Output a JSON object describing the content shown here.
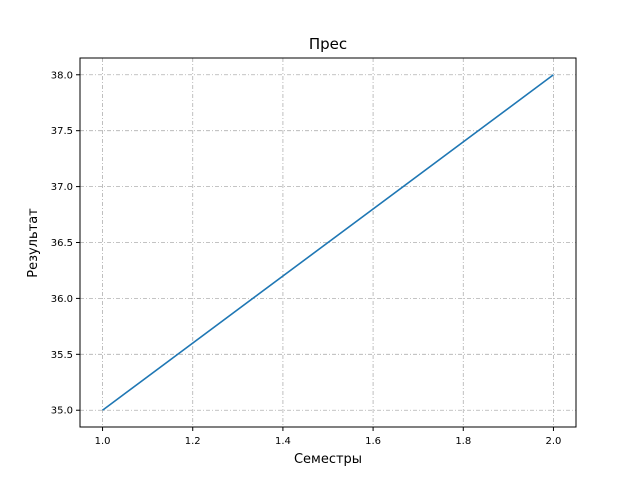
{
  "chart_data": {
    "type": "line",
    "title": "Прес",
    "xlabel": "Семестры",
    "ylabel": "Результат",
    "xlim": [
      0.95,
      2.05
    ],
    "ylim": [
      34.85,
      38.15
    ],
    "x_ticks": [
      "1.0",
      "1.2",
      "1.4",
      "1.6",
      "1.8",
      "2.0"
    ],
    "y_ticks": [
      "35.0",
      "35.5",
      "36.0",
      "36.5",
      "37.0",
      "37.5",
      "38.0"
    ],
    "grid": true,
    "series": [
      {
        "x": [
          1.0,
          2.0
        ],
        "y": [
          35.0,
          38.0
        ],
        "color": "#1f77b4"
      }
    ]
  }
}
